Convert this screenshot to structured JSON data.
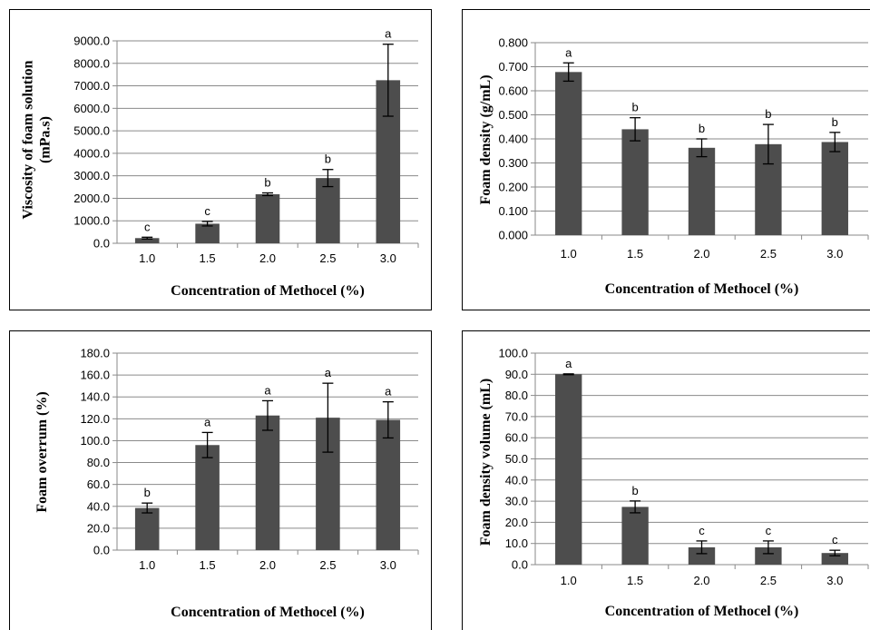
{
  "chart_data": [
    {
      "type": "bar",
      "categories": [
        "1.0",
        "1.5",
        "2.0",
        "2.5",
        "3.0"
      ],
      "values": [
        230,
        870,
        2180,
        2900,
        7250
      ],
      "errors": [
        40,
        100,
        60,
        380,
        1600
      ],
      "significance": [
        "c",
        "c",
        "b",
        "b",
        "a"
      ],
      "ylabel_lines": [
        "Viscosity of foam solution",
        "(mPa.s)"
      ],
      "xlabel": "Concentration of Methocel (%)",
      "ylim": [
        0,
        9000
      ],
      "yticks": [
        "0.0",
        "1000.0",
        "2000.0",
        "3000.0",
        "4000.0",
        "5000.0",
        "6000.0",
        "7000.0",
        "8000.0",
        "9000.0"
      ],
      "grid": true
    },
    {
      "type": "bar",
      "categories": [
        "1.0",
        "1.5",
        "2.0",
        "2.5",
        "3.0"
      ],
      "values": [
        0.678,
        0.44,
        0.363,
        0.378,
        0.387
      ],
      "errors": [
        0.038,
        0.048,
        0.037,
        0.082,
        0.04
      ],
      "significance": [
        "a",
        "b",
        "b",
        "b",
        "b"
      ],
      "ylabel_lines": [
        "Foam density (g/mL)"
      ],
      "xlabel": "Concentration of Methocel (%)",
      "ylim": [
        0,
        0.8
      ],
      "yticks": [
        "0.000",
        "0.100",
        "0.200",
        "0.300",
        "0.400",
        "0.500",
        "0.600",
        "0.700",
        "0.800"
      ],
      "grid": true
    },
    {
      "type": "bar",
      "categories": [
        "1.0",
        "1.5",
        "2.0",
        "2.5",
        "3.0"
      ],
      "values": [
        38.5,
        96,
        123,
        121,
        119
      ],
      "errors": [
        4.5,
        11.5,
        13.5,
        31.5,
        16.5
      ],
      "significance": [
        "b",
        "a",
        "a",
        "a",
        "a"
      ],
      "ylabel_lines": [
        "Foam overrum (%)"
      ],
      "xlabel": "Concentration of Methocel (%)",
      "ylim": [
        0,
        180
      ],
      "yticks": [
        "0.0",
        "20.0",
        "40.0",
        "60.0",
        "80.0",
        "100.0",
        "120.0",
        "140.0",
        "160.0",
        "180.0"
      ],
      "grid": true
    },
    {
      "type": "bar",
      "categories": [
        "1.0",
        "1.5",
        "2.0",
        "2.5",
        "3.0"
      ],
      "values": [
        90,
        27.3,
        8.2,
        8.2,
        5.5
      ],
      "errors": [
        0.2,
        2.8,
        3.0,
        3.0,
        1.3
      ],
      "significance": [
        "a",
        "b",
        "c",
        "c",
        "c"
      ],
      "ylabel_lines": [
        "Foam density volume (mL)"
      ],
      "xlabel": "Concentration of Methocel (%)",
      "ylim": [
        0,
        100
      ],
      "yticks": [
        "0.0",
        "10.0",
        "20.0",
        "30.0",
        "40.0",
        "50.0",
        "60.0",
        "70.0",
        "80.0",
        "90.0",
        "100.0"
      ],
      "grid": true
    }
  ]
}
